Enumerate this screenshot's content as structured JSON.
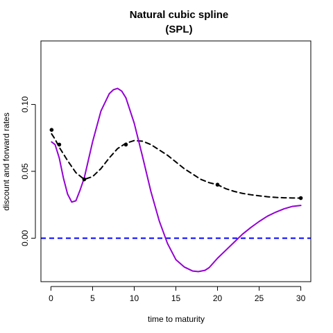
{
  "chart_data": {
    "type": "line",
    "title": [
      "Natural cubic spline",
      "(SPL)"
    ],
    "xlabel": "time to maturity",
    "ylabel": "discount and forward rates",
    "xlim": [
      -1.2,
      31.2
    ],
    "ylim": [
      -0.0325,
      0.1475
    ],
    "xticks": [
      0,
      5,
      10,
      15,
      20,
      25,
      30
    ],
    "yticks": [
      0.0,
      0.05,
      0.1
    ],
    "ytick_labels": [
      "0.00",
      "0.05",
      "0.10"
    ],
    "colors": {
      "discount": "#000000",
      "forward": "#9400D3",
      "zero_line": "#0000FF",
      "points": "#000000"
    },
    "series": [
      {
        "style": "dashed",
        "color": "#000000",
        "x": [
          0.08,
          0.5,
          1,
          2,
          3,
          4,
          5,
          6,
          7,
          8,
          9,
          10,
          11,
          12,
          13,
          14,
          15,
          16,
          17,
          18,
          19,
          20,
          21,
          22,
          23,
          24,
          25,
          26,
          27,
          28,
          29,
          30
        ],
        "y": [
          0.078,
          0.074,
          0.068,
          0.058,
          0.049,
          0.044,
          0.046,
          0.052,
          0.06,
          0.067,
          0.071,
          0.073,
          0.0725,
          0.07,
          0.066,
          0.062,
          0.057,
          0.052,
          0.048,
          0.044,
          0.0415,
          0.04,
          0.037,
          0.035,
          0.0335,
          0.0325,
          0.0317,
          0.031,
          0.0305,
          0.0302,
          0.0301,
          0.03
        ]
      },
      {
        "style": "solid",
        "color": "#9400D3",
        "x": [
          0.08,
          0.5,
          1,
          1.5,
          2,
          2.5,
          3,
          3.5,
          4,
          5,
          6,
          7,
          7.5,
          8,
          8.5,
          9,
          10,
          11,
          12,
          13,
          14,
          15,
          16,
          17,
          17.7,
          18.5,
          19,
          20,
          21,
          22,
          23,
          24,
          25,
          26,
          27,
          28,
          29,
          30
        ],
        "y": [
          0.072,
          0.07,
          0.06,
          0.045,
          0.033,
          0.027,
          0.028,
          0.036,
          0.045,
          0.072,
          0.095,
          0.108,
          0.111,
          0.112,
          0.11,
          0.105,
          0.086,
          0.061,
          0.035,
          0.013,
          -0.004,
          -0.016,
          -0.0215,
          -0.0245,
          -0.025,
          -0.024,
          -0.022,
          -0.015,
          -0.009,
          -0.003,
          0.003,
          0.008,
          0.0125,
          0.0165,
          0.0195,
          0.022,
          0.0238,
          0.0245
        ]
      }
    ],
    "points": {
      "x": [
        0.08,
        1,
        4,
        9,
        20,
        30
      ],
      "y": [
        0.081,
        0.07,
        0.044,
        0.07,
        0.04,
        0.03
      ]
    },
    "hline": {
      "y": 0.0,
      "color": "#0000FF",
      "style": "dashed"
    }
  }
}
